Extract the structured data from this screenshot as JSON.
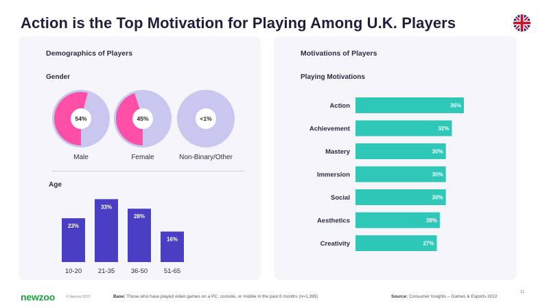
{
  "title": "Action is the Top Motivation for Playing Among U.K. Players",
  "left_panel": {
    "title": "Demographics of Players",
    "gender_label": "Gender",
    "age_label": "Age"
  },
  "right_panel": {
    "title": "Motivations of Players",
    "subtitle": "Playing Motivations"
  },
  "colors": {
    "donut_fill": "#ff4fa7",
    "donut_base": "#c9c6ef",
    "age_bar": "#4a3fc4",
    "motivation_bar": "#2ec7b8",
    "logo": "#1e9e3c"
  },
  "chart_data": [
    {
      "type": "pie",
      "title": "Gender",
      "categories": [
        "Male",
        "Female",
        "Non-Binary/Other"
      ],
      "values": [
        54,
        45,
        1
      ],
      "labels": [
        "54%",
        "45%",
        "<1%"
      ]
    },
    {
      "type": "bar",
      "title": "Age",
      "categories": [
        "10-20",
        "21-35",
        "36-50",
        "51-65"
      ],
      "values": [
        23,
        33,
        28,
        16
      ],
      "labels": [
        "23%",
        "33%",
        "28%",
        "16%"
      ],
      "ylim": [
        0,
        36
      ]
    },
    {
      "type": "bar",
      "orientation": "horizontal",
      "title": "Playing Motivations",
      "categories": [
        "Action",
        "Achievement",
        "Mastery",
        "Immersion",
        "Social",
        "Aesthetics",
        "Creativity"
      ],
      "values": [
        36,
        32,
        30,
        30,
        30,
        28,
        27
      ],
      "labels": [
        "36%",
        "32%",
        "30%",
        "30%",
        "30%",
        "28%",
        "27%"
      ],
      "xlim": [
        0,
        36
      ]
    }
  ],
  "footer": {
    "logo": "newzoo",
    "copyright": "© Newzoo 2022",
    "base_label": "Base:",
    "base_text": "Those who have played video games on a PC, console, or mobile in the past 6 months (n=1,395)",
    "source_label": "Source:",
    "source_text": "Consumer Insights – Games & Esports 2022",
    "page": "11"
  }
}
